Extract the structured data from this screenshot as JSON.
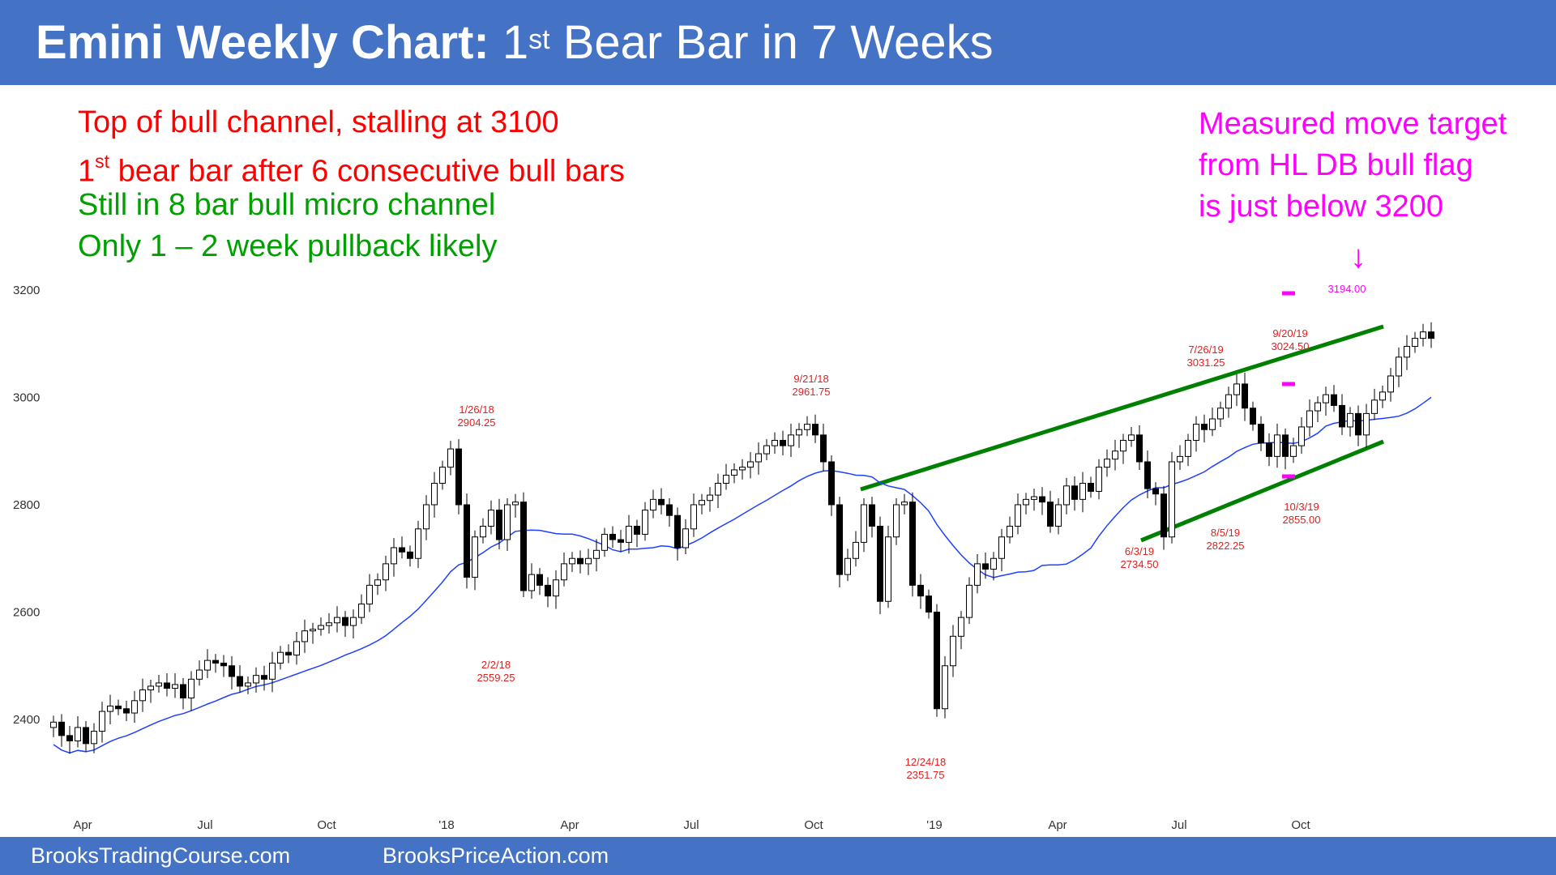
{
  "header": {
    "title_bold": "Emini Weekly Chart:",
    "title_pre": "1",
    "title_sup": "st",
    "title_post": "Bear Bar in 7 Weeks"
  },
  "notes": {
    "line1": "Top of bull channel, stalling at 3100",
    "line2_pre": "1",
    "line2_sup": "st",
    "line2_post": "bear bar after 6 consecutive bull bars",
    "line3": "Still in 8 bar bull micro channel",
    "line4": "Only 1 – 2 week pullback likely",
    "right1": "Measured move target",
    "right2": "from HL DB bull flag",
    "right3": "is just below 3200",
    "arrow": "↓"
  },
  "footer": {
    "left": "BrooksTradingCourse.com",
    "right": "BrooksPriceAction.com"
  },
  "colors": {
    "header_bg": "#4472c4",
    "bull_candle": "#ffffff",
    "bear_candle": "#000000",
    "moving_average": "#2040ff",
    "channel_lines": "#008000",
    "annotation_red": "#ff0000",
    "annotation_magenta": "#ff00ff"
  },
  "chart_data": {
    "type": "candlestick",
    "title": "",
    "ylim": [
      2270,
      3270
    ],
    "y_ticks": [
      "2400",
      "2600",
      "2800",
      "3000",
      "3200"
    ],
    "x_ticks": [
      "Apr",
      "Jul",
      "Oct",
      "'18",
      "Apr",
      "Jul",
      "Oct",
      "'19",
      "Apr",
      "Jul",
      "Oct"
    ],
    "series": [
      {
        "kind": "weekly_candles",
        "close": [
          2395,
          2370,
          2360,
          2385,
          2355,
          2378,
          2415,
          2425,
          2420,
          2412,
          2435,
          2455,
          2462,
          2468,
          2458,
          2465,
          2440,
          2475,
          2492,
          2510,
          2505,
          2500,
          2480,
          2462,
          2468,
          2482,
          2475,
          2505,
          2525,
          2520,
          2545,
          2565,
          2568,
          2575,
          2580,
          2590,
          2575,
          2590,
          2615,
          2650,
          2660,
          2690,
          2720,
          2712,
          2700,
          2755,
          2800,
          2840,
          2870,
          2904,
          2800,
          2665,
          2740,
          2760,
          2790,
          2735,
          2800,
          2805,
          2640,
          2670,
          2650,
          2630,
          2660,
          2690,
          2700,
          2690,
          2700,
          2715,
          2745,
          2735,
          2730,
          2760,
          2745,
          2790,
          2810,
          2800,
          2780,
          2720,
          2755,
          2800,
          2808,
          2818,
          2840,
          2855,
          2865,
          2870,
          2880,
          2895,
          2910,
          2920,
          2910,
          2930,
          2940,
          2950,
          2930,
          2880,
          2800,
          2670,
          2700,
          2730,
          2800,
          2760,
          2620,
          2740,
          2800,
          2805,
          2650,
          2630,
          2600,
          2420,
          2500,
          2555,
          2590,
          2650,
          2690,
          2680,
          2700,
          2740,
          2760,
          2800,
          2810,
          2815,
          2805,
          2760,
          2800,
          2835,
          2810,
          2840,
          2825,
          2870,
          2885,
          2900,
          2920,
          2930,
          2880,
          2830,
          2820,
          2740,
          2880,
          2890,
          2920,
          2950,
          2940,
          2960,
          2980,
          3005,
          3025,
          2980,
          2950,
          2915,
          2890,
          2930,
          2890,
          2910,
          2945,
          2975,
          2990,
          3005,
          2985,
          2945,
          2970,
          2930,
          2970,
          2995,
          3010,
          3040,
          3075,
          3095,
          3110,
          3122,
          3110
        ],
        "moving_average": "20-week"
      }
    ],
    "annotations": [
      {
        "date": "1/26/18",
        "price": "2904.25"
      },
      {
        "date": "2/2/18",
        "price": "2559.25"
      },
      {
        "date": "9/21/18",
        "price": "2961.75"
      },
      {
        "date": "12/24/18",
        "price": "2351.75"
      },
      {
        "date": "6/3/19",
        "price": "2734.50"
      },
      {
        "date": "7/26/19",
        "price": "3031.25"
      },
      {
        "date": "8/5/19",
        "price": "2822.25"
      },
      {
        "date": "9/20/19",
        "price": "3024.50"
      },
      {
        "date": "10/3/19",
        "price": "2855.00"
      },
      {
        "date": "",
        "price": "3194.00"
      }
    ],
    "grid": false,
    "legend": "none"
  }
}
